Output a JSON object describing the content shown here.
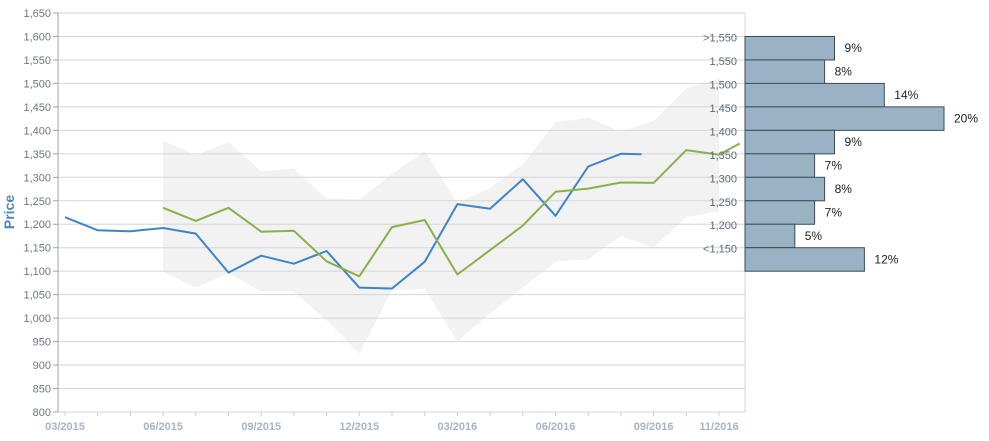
{
  "colors": {
    "series_blue": "#3d85c6",
    "series_green": "#8ab04a",
    "band_fill": "#f2f2f2",
    "grid": "#d6d6d6",
    "hist_fill": "#9ab3c4",
    "hist_stroke": "#3a4a5a"
  },
  "chart_data": [
    {
      "type": "line",
      "ylabel": "Price",
      "ylim": [
        800,
        1650
      ],
      "yticks": [
        "800",
        "850",
        "900",
        "950",
        "1,000",
        "1,050",
        "1,100",
        "1,150",
        "1,200",
        "1,250",
        "1,300",
        "1,350",
        "1,400",
        "1,450",
        "1,500",
        "1,550",
        "1,600",
        "1,650"
      ],
      "yticks_values": [
        800,
        850,
        900,
        950,
        1000,
        1050,
        1100,
        1150,
        1200,
        1250,
        1300,
        1350,
        1400,
        1450,
        1500,
        1550,
        1600,
        1650
      ],
      "x_months": [
        "2015-03",
        "2015-04",
        "2015-05",
        "2015-06",
        "2015-07",
        "2015-08",
        "2015-09",
        "2015-10",
        "2015-11",
        "2015-12",
        "2016-01",
        "2016-02",
        "2016-03",
        "2016-04",
        "2016-05",
        "2016-06",
        "2016-07",
        "2016-08",
        "2016-09",
        "2016-10",
        "2016-11"
      ],
      "xticks": [
        {
          "label": "03/2015",
          "month": "2015-03"
        },
        {
          "label": "06/2015",
          "month": "2015-06"
        },
        {
          "label": "09/2015",
          "month": "2015-09"
        },
        {
          "label": "12/2015",
          "month": "2015-12"
        },
        {
          "label": "03/2016",
          "month": "2016-03"
        },
        {
          "label": "06/2016",
          "month": "2016-06"
        },
        {
          "label": "09/2016",
          "month": "2016-09"
        },
        {
          "label": "11/2016",
          "month": "2016-11"
        }
      ],
      "grid": true,
      "series": [
        {
          "color": "#3d85c6",
          "points": [
            {
              "x": "2015-03",
              "y": 1215
            },
            {
              "x": "2015-04",
              "y": 1187
            },
            {
              "x": "2015-05",
              "y": 1185
            },
            {
              "x": "2015-06",
              "y": 1192
            },
            {
              "x": "2015-07",
              "y": 1180
            },
            {
              "x": "2015-08",
              "y": 1097
            },
            {
              "x": "2015-09",
              "y": 1133
            },
            {
              "x": "2015-10",
              "y": 1116
            },
            {
              "x": "2015-11",
              "y": 1143
            },
            {
              "x": "2015-12",
              "y": 1065
            },
            {
              "x": "2016-01",
              "y": 1063
            },
            {
              "x": "2016-02",
              "y": 1120
            },
            {
              "x": "2016-03",
              "y": 1243
            },
            {
              "x": "2016-04",
              "y": 1233
            },
            {
              "x": "2016-05",
              "y": 1296
            },
            {
              "x": "2016-06",
              "y": 1218
            },
            {
              "x": "2016-07",
              "y": 1323
            },
            {
              "x": "2016-08",
              "y": 1350
            },
            {
              "x": "2016-08-20",
              "y": 1349
            }
          ]
        },
        {
          "color": "#8ab04a",
          "points": [
            {
              "x": "2015-06",
              "y": 1235
            },
            {
              "x": "2015-07",
              "y": 1207
            },
            {
              "x": "2015-08",
              "y": 1235
            },
            {
              "x": "2015-09",
              "y": 1184
            },
            {
              "x": "2015-10",
              "y": 1186
            },
            {
              "x": "2015-11",
              "y": 1121
            },
            {
              "x": "2015-12",
              "y": 1089
            },
            {
              "x": "2016-01",
              "y": 1194
            },
            {
              "x": "2016-02",
              "y": 1209
            },
            {
              "x": "2016-03",
              "y": 1093
            },
            {
              "x": "2016-04",
              "y": 1145
            },
            {
              "x": "2016-05",
              "y": 1197
            },
            {
              "x": "2016-06",
              "y": 1269
            },
            {
              "x": "2016-07",
              "y": 1276
            },
            {
              "x": "2016-08",
              "y": 1289
            },
            {
              "x": "2016-09",
              "y": 1288
            },
            {
              "x": "2016-10",
              "y": 1358
            },
            {
              "x": "2016-11",
              "y": 1348
            },
            {
              "x": "2016-11-20",
              "y": 1372
            }
          ]
        }
      ],
      "band": {
        "color": "#f2f2f2",
        "upper": [
          {
            "x": "2015-06",
            "y": 1378
          },
          {
            "x": "2015-07",
            "y": 1347
          },
          {
            "x": "2015-08",
            "y": 1375
          },
          {
            "x": "2015-09",
            "y": 1313
          },
          {
            "x": "2015-10",
            "y": 1318
          },
          {
            "x": "2015-11",
            "y": 1255
          },
          {
            "x": "2015-12",
            "y": 1253
          },
          {
            "x": "2016-01",
            "y": 1307
          },
          {
            "x": "2016-02",
            "y": 1356
          },
          {
            "x": "2016-03",
            "y": 1245
          },
          {
            "x": "2016-04",
            "y": 1278
          },
          {
            "x": "2016-05",
            "y": 1328
          },
          {
            "x": "2016-06",
            "y": 1417
          },
          {
            "x": "2016-07",
            "y": 1427
          },
          {
            "x": "2016-08",
            "y": 1397
          },
          {
            "x": "2016-09",
            "y": 1420
          },
          {
            "x": "2016-10",
            "y": 1490
          },
          {
            "x": "2016-11",
            "y": 1510
          }
        ],
        "lower": [
          {
            "x": "2015-06",
            "y": 1100
          },
          {
            "x": "2015-07",
            "y": 1065
          },
          {
            "x": "2015-08",
            "y": 1095
          },
          {
            "x": "2015-09",
            "y": 1057
          },
          {
            "x": "2015-10",
            "y": 1057
          },
          {
            "x": "2015-11",
            "y": 995
          },
          {
            "x": "2015-12",
            "y": 924
          },
          {
            "x": "2016-01",
            "y": 1060
          },
          {
            "x": "2016-02",
            "y": 1062
          },
          {
            "x": "2016-03",
            "y": 950
          },
          {
            "x": "2016-04",
            "y": 1010
          },
          {
            "x": "2016-05",
            "y": 1065
          },
          {
            "x": "2016-06",
            "y": 1120
          },
          {
            "x": "2016-07",
            "y": 1125
          },
          {
            "x": "2016-08",
            "y": 1175
          },
          {
            "x": "2016-09",
            "y": 1150
          },
          {
            "x": "2016-10",
            "y": 1215
          },
          {
            "x": "2016-11",
            "y": 1228
          }
        ]
      }
    },
    {
      "type": "bar",
      "orientation": "horizontal",
      "unit": "%",
      "xlim": [
        0,
        20
      ],
      "categories": [
        ">1,550",
        "1,550",
        "1,500",
        "1,450",
        "1,400",
        "1,350",
        "1,300",
        "1,250",
        "1,200",
        "<1,150"
      ],
      "labels": [
        "9%",
        "8%",
        "14%",
        "20%",
        "9%",
        "7%",
        "8%",
        "7%",
        "5%",
        "12%"
      ],
      "values": [
        9,
        8,
        14,
        20,
        9,
        7,
        8,
        7,
        5,
        12
      ],
      "bins": [
        {
          "from": 1550,
          "to": 1600
        },
        {
          "from": 1500,
          "to": 1550
        },
        {
          "from": 1450,
          "to": 1500
        },
        {
          "from": 1400,
          "to": 1450
        },
        {
          "from": 1350,
          "to": 1400
        },
        {
          "from": 1300,
          "to": 1350
        },
        {
          "from": 1250,
          "to": 1300
        },
        {
          "from": 1200,
          "to": 1250
        },
        {
          "from": 1150,
          "to": 1200
        },
        {
          "from": 1100,
          "to": 1150
        }
      ]
    }
  ]
}
